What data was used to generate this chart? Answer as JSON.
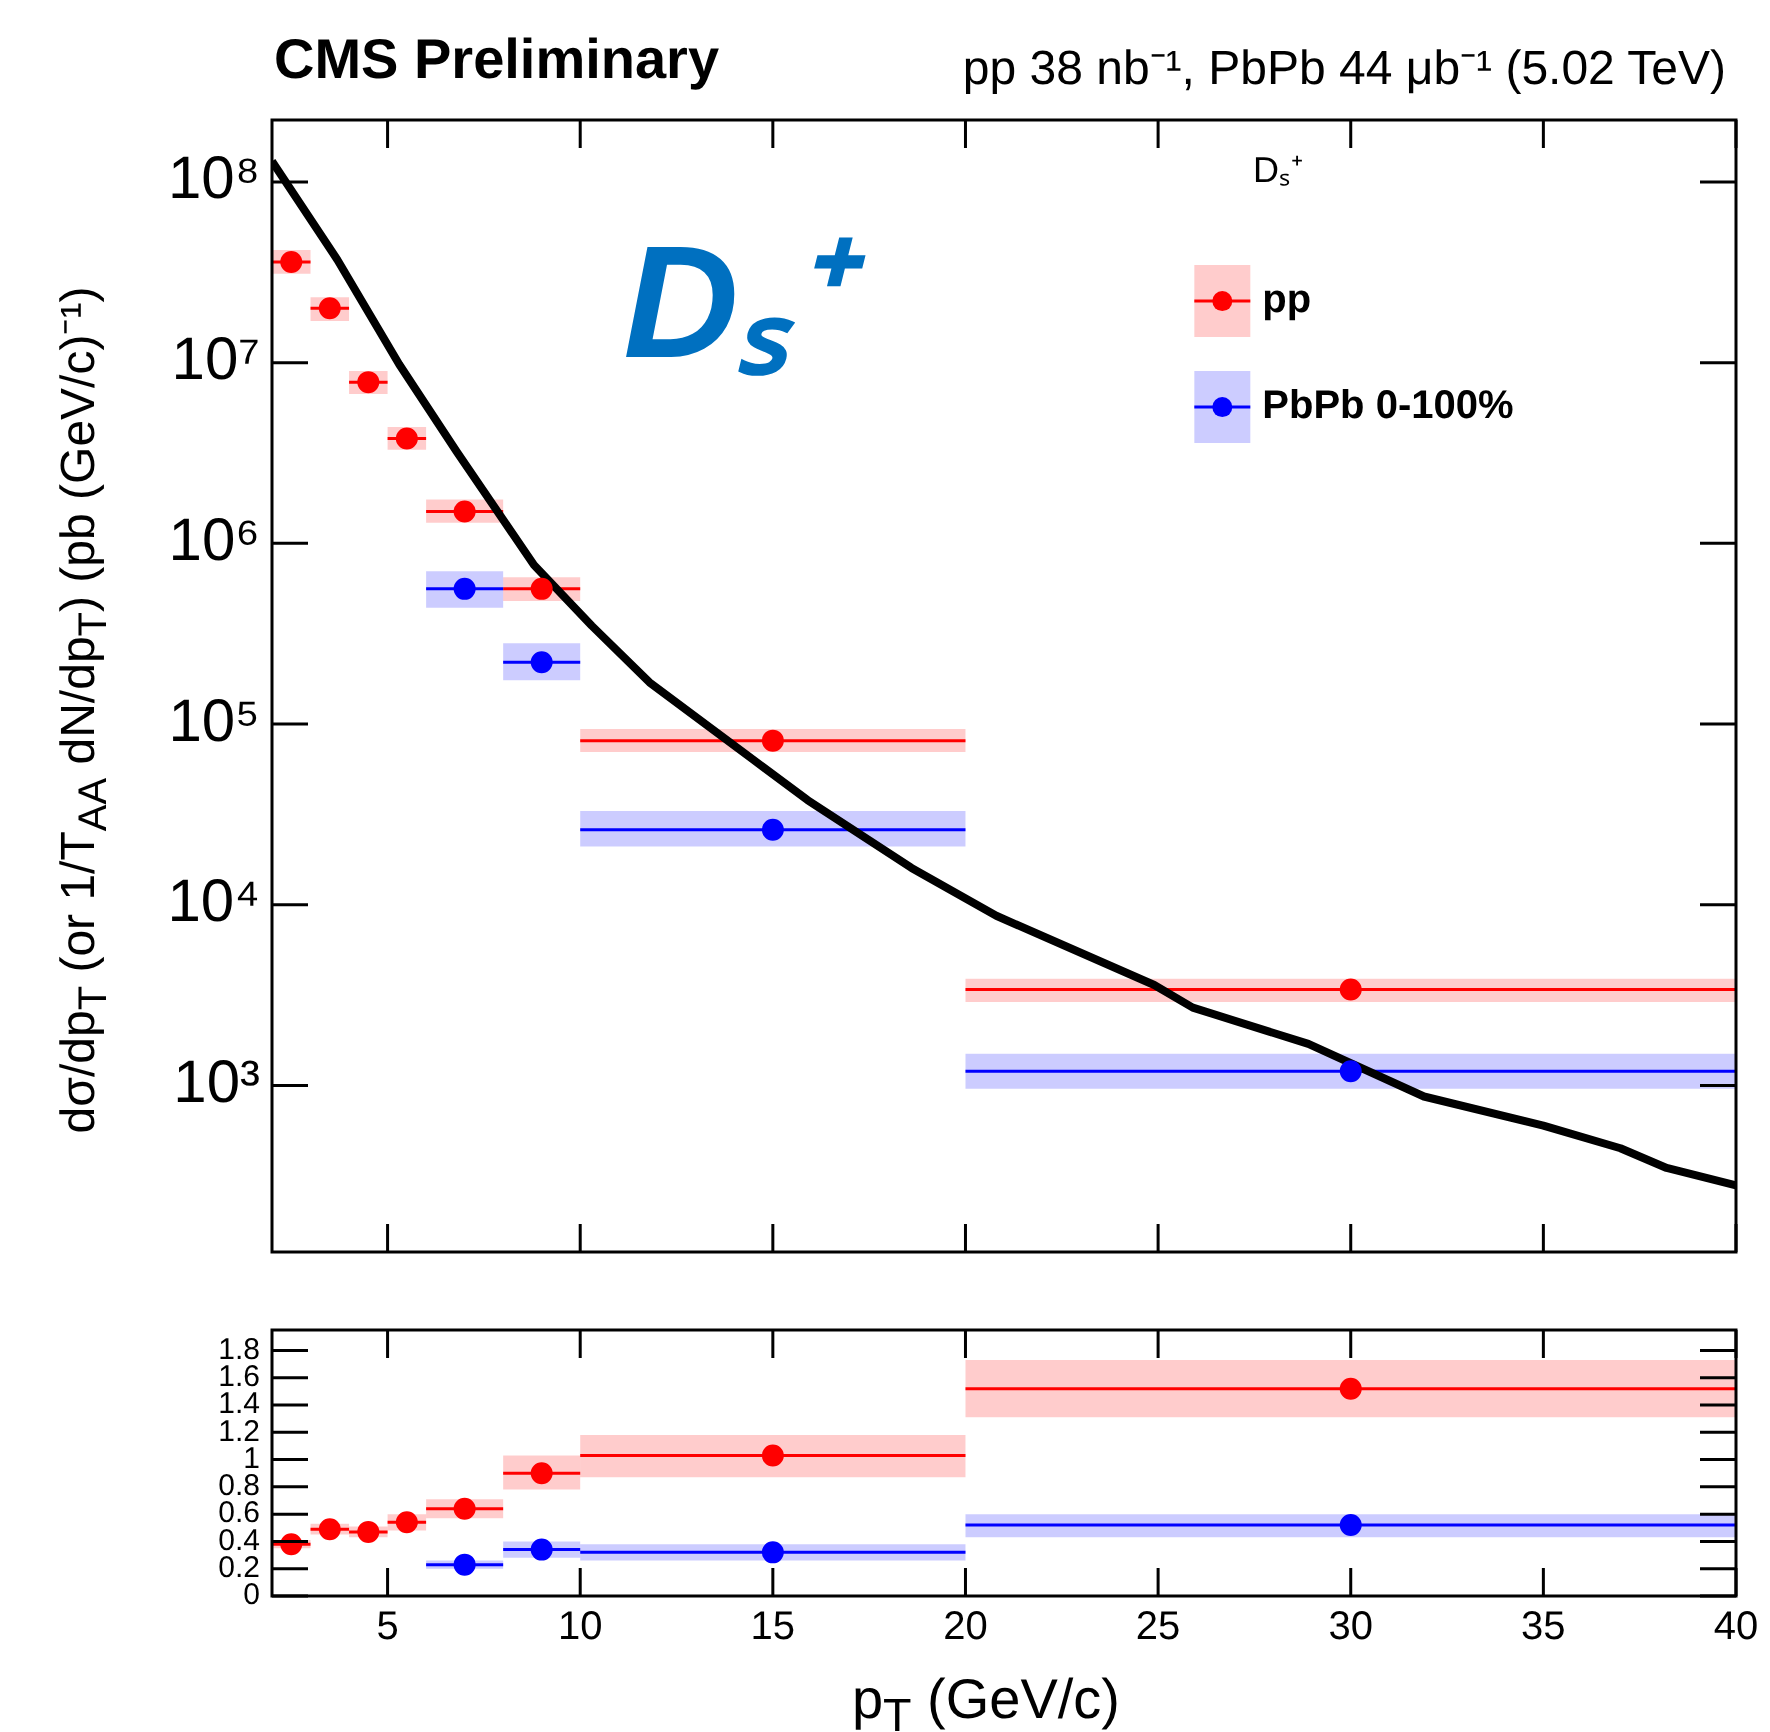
{
  "chart_data": [
    {
      "type": "scatter",
      "title": "CMS Preliminary",
      "subtitle": "pp 38 nb⁻¹, PbPb 44 μb⁻¹ (5.02 TeV)",
      "ylabel": "dσ/dp$_{T}$ (or 1/T$_{AA}$ dN/dp$_{T}$) (pb (GeV/c)⁻¹)",
      "annotations": [
        "Dₛ⁺",
        "Dₛ⁺"
      ],
      "xlim": [
        2,
        40
      ],
      "xticks": [
        5,
        10,
        15,
        20,
        25,
        30,
        35,
        40
      ],
      "ylim": [
        120,
        220000000
      ],
      "yticks": [
        {
          "value": 1000,
          "label": "10³"
        },
        {
          "value": 10000,
          "label": "10⁴"
        },
        {
          "value": 100000,
          "label": "10⁵"
        },
        {
          "value": 1000000,
          "label": "10⁶"
        },
        {
          "value": 10000000,
          "label": "10⁷"
        },
        {
          "value": 100000000,
          "label": "10⁸"
        }
      ],
      "log": "y",
      "grid": false,
      "legend": "top right",
      "tick_labels": "y",
      "marker": "circle",
      "series": [
        {
          "name": "pp",
          "color": "#ff0000",
          "x": [
            2.5,
            3.5,
            4.5,
            5.5,
            7,
            9,
            15,
            30
          ],
          "values": [
            36000000,
            20000000,
            7800000,
            3800000,
            1500000,
            560000,
            81000,
            3400
          ],
          "xerrors": [
            0.5,
            0.5,
            0.5,
            0.5,
            1,
            1,
            5,
            10
          ],
          "errors": [
            [
              31000000,
              42000000
            ],
            [
              17000000,
              23000000
            ],
            [
              6700000,
              9000000
            ],
            [
              3300000,
              4400000
            ],
            [
              1300000,
              1750000
            ],
            [
              480000,
              650000
            ],
            [
              70000,
              94000
            ],
            [
              2900,
              3900
            ]
          ]
        },
        {
          "name": "PbPb 0-100%",
          "color": "#0000ff",
          "x": [
            7,
            9,
            15,
            30
          ],
          "values": [
            560000,
            220000,
            26000,
            1200
          ],
          "xerrors": [
            1,
            1,
            5,
            10
          ],
          "errors": [
            [
              440000,
              700000
            ],
            [
              175000,
              280000
            ],
            [
              21000,
              33000
            ],
            [
              960,
              1500
            ]
          ]
        },
        {
          "type": "line",
          "marker": "none",
          "color": "#000000",
          "x": [
            2,
            3.7,
            5.3,
            6.8,
            8.8,
            10.3,
            11.8,
            15.9,
            18.6,
            20.8,
            24.9,
            25.9,
            28.9,
            31.9,
            35,
            37,
            38.2,
            40
          ],
          "values": [
            130000000,
            37000000,
            9800000,
            3200000,
            760000,
            350000,
            170000,
            38000,
            16000,
            8700,
            3600,
            2700,
            1700,
            870,
            600,
            450,
            350,
            280
          ]
        }
      ]
    },
    {
      "type": "scatter",
      "xlabel": "p$_{T}$ (GeV/c)",
      "xlim": [
        2,
        40
      ],
      "xticks": [
        5,
        10,
        15,
        20,
        25,
        30,
        35,
        40
      ],
      "ylim": [
        0,
        1.95
      ],
      "yticks": [
        0,
        0.2,
        0.4,
        0.6,
        0.8,
        1,
        1.2,
        1.4,
        1.6,
        1.8
      ],
      "grid": false,
      "marker": "circle",
      "series": [
        {
          "color": "#ff0000",
          "x": [
            2.5,
            3.5,
            4.5,
            5.5,
            7,
            9,
            15,
            30
          ],
          "values": [
            0.38,
            0.49,
            0.47,
            0.54,
            0.64,
            0.9,
            1.03,
            1.52
          ],
          "xerrors": [
            0.5,
            0.5,
            0.5,
            0.5,
            1,
            1,
            5,
            10
          ],
          "errors": [
            [
              0.35,
              0.41
            ],
            [
              0.45,
              0.53
            ],
            [
              0.43,
              0.51
            ],
            [
              0.48,
              0.6
            ],
            [
              0.57,
              0.71
            ],
            [
              0.78,
              1.03
            ],
            [
              0.87,
              1.18
            ],
            [
              1.31,
              1.73
            ]
          ]
        },
        {
          "color": "#0000ff",
          "x": [
            7,
            9,
            15,
            30
          ],
          "values": [
            0.23,
            0.34,
            0.32,
            0.52
          ],
          "xerrors": [
            1,
            1,
            5,
            10
          ],
          "errors": [
            [
              0.2,
              0.26
            ],
            [
              0.28,
              0.4
            ],
            [
              0.26,
              0.38
            ],
            [
              0.43,
              0.6
            ]
          ]
        }
      ]
    }
  ]
}
